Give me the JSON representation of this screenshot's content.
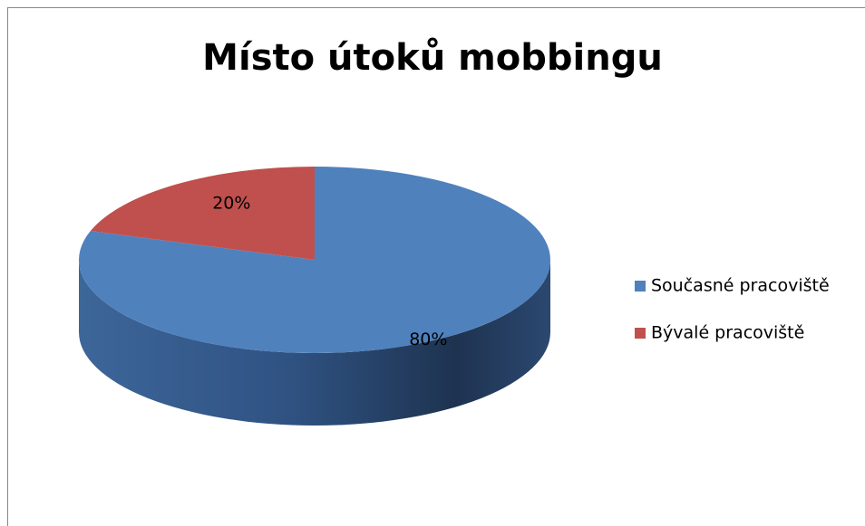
{
  "chart_data": {
    "type": "pie",
    "title": "Místo útoků mobbingu",
    "categories": [
      "Současné pracoviště",
      "Bývalé pracoviště"
    ],
    "values": [
      80,
      20
    ],
    "value_labels": [
      "80%",
      "20%"
    ],
    "colors": [
      "#4f81bd",
      "#c0504d"
    ],
    "legend": "right"
  }
}
